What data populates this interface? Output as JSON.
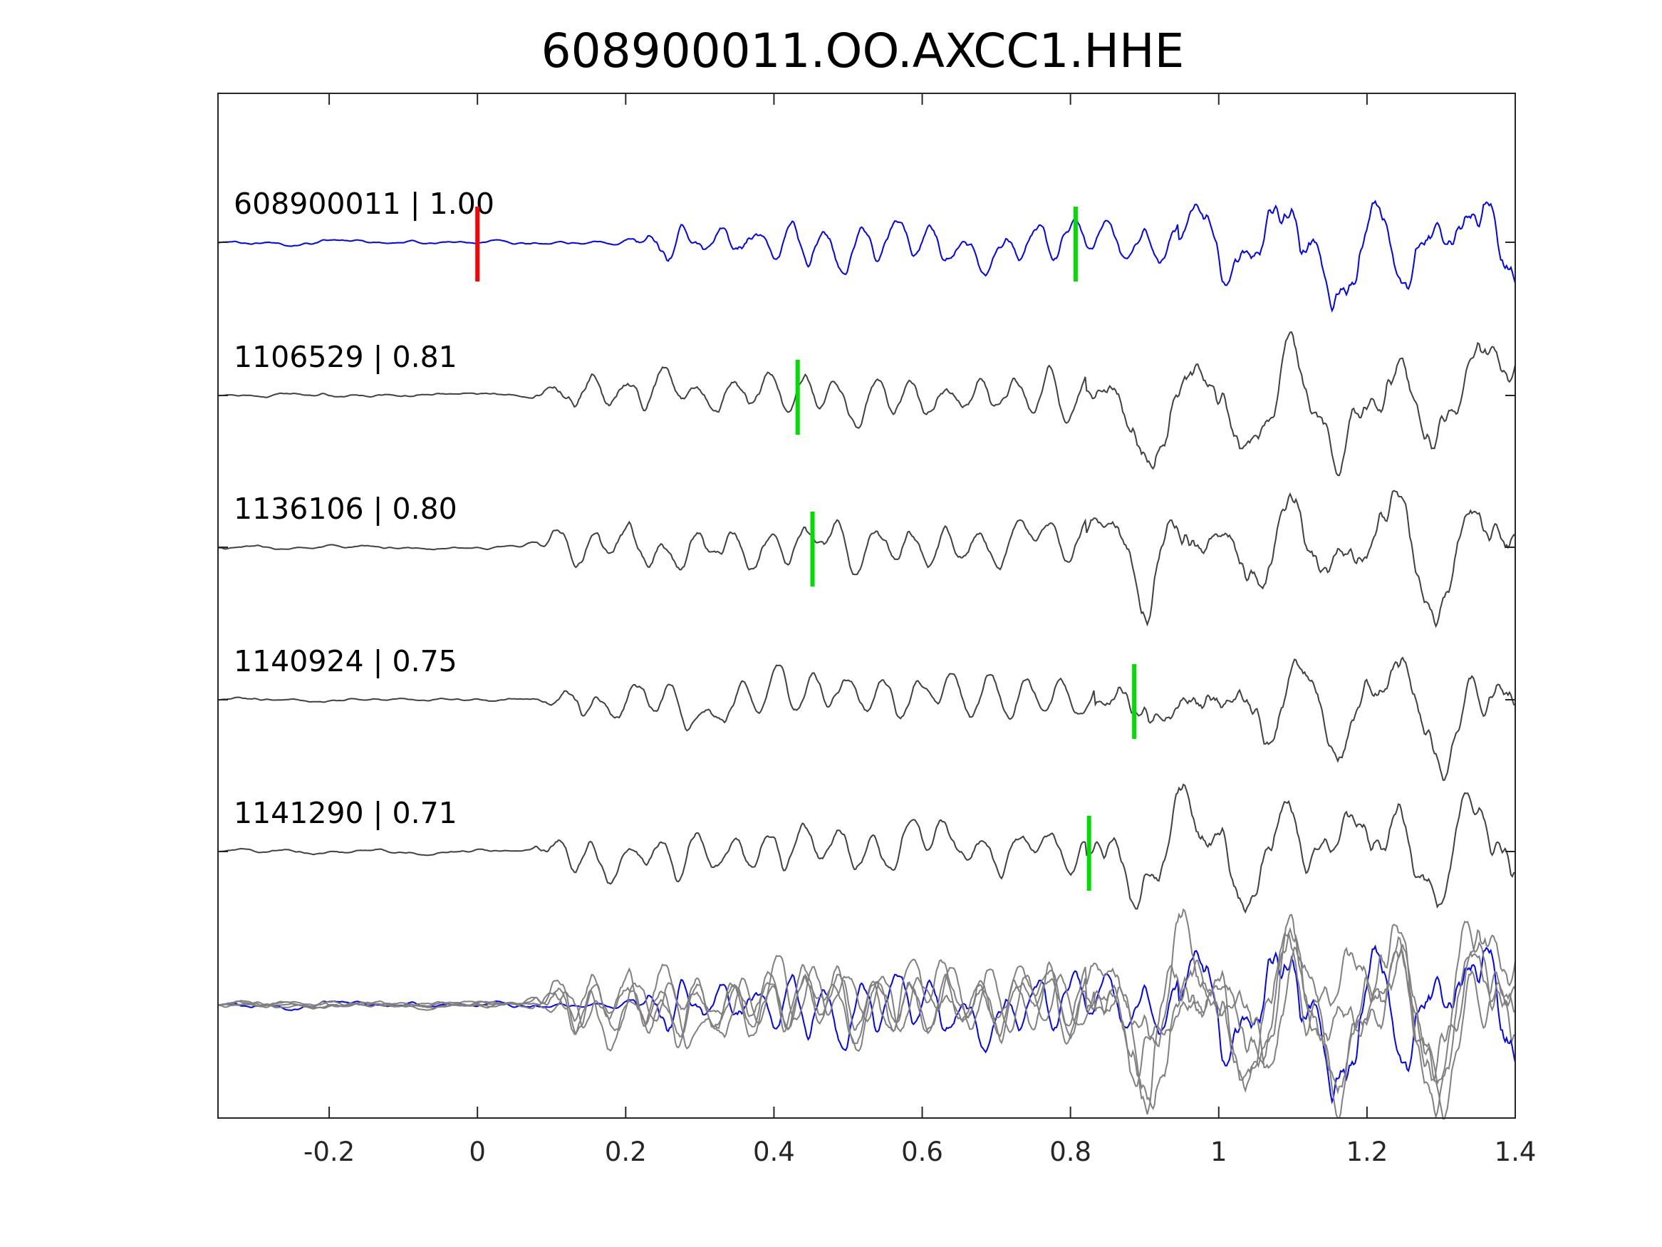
{
  "chart_data": {
    "type": "line",
    "title": "608900011.OO.AXCC1.HHE",
    "xlabel": "",
    "ylabel": "",
    "xlim": [
      -0.35,
      1.4
    ],
    "x_ticks": [
      "-0.2",
      "0",
      "0.2",
      "0.4",
      "0.6",
      "0.8",
      "1",
      "1.2",
      "1.4"
    ],
    "x_tick_values": [
      -0.2,
      0,
      0.2,
      0.4,
      0.6,
      0.8,
      1.0,
      1.2,
      1.4
    ],
    "grid": false,
    "legend": "none",
    "colors": {
      "template": "#0000ff",
      "matched": "#404040",
      "overlay": "#808080",
      "origin_marker": "#ff0000",
      "pick_marker": "#00dd00"
    },
    "series": [
      {
        "label": "608900011 | 1.00",
        "id": "608900011",
        "correlation": 1.0,
        "color": "#0000ff",
        "pick": 0.807,
        "origin_marker": 0
      },
      {
        "label": "1106529 | 0.81",
        "id": "1106529",
        "correlation": 0.81,
        "color": "#404040",
        "pick": 0.432
      },
      {
        "label": "1136106 | 0.80",
        "id": "1136106",
        "correlation": 0.8,
        "color": "#404040",
        "pick": 0.452
      },
      {
        "label": "1140924 | 0.75",
        "id": "1140924",
        "correlation": 0.75,
        "color": "#404040",
        "pick": 0.886
      },
      {
        "label": "1141290 | 0.71",
        "id": "1141290",
        "correlation": 0.71,
        "color": "#404040",
        "pick": 0.825
      }
    ],
    "overlay": {
      "description": "stacked overlay of all traces"
    }
  }
}
